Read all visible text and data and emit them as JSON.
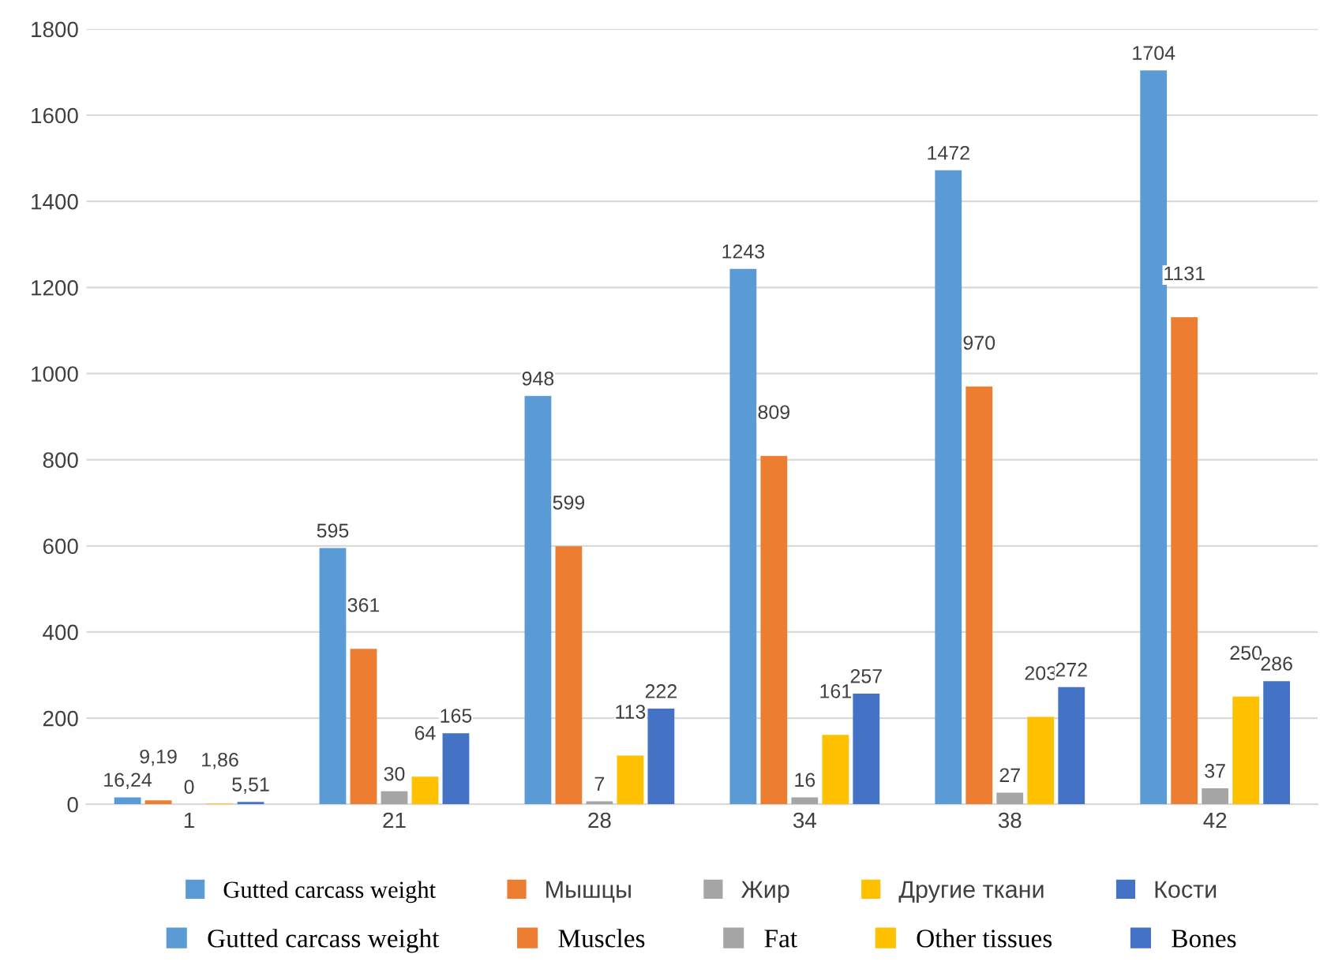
{
  "chart_data": {
    "type": "bar",
    "categories": [
      "1",
      "21",
      "28",
      "34",
      "38",
      "42"
    ],
    "series": [
      {
        "name": "Gutted carcass weight",
        "color": "#5b9bd5",
        "values": [
          16.24,
          595,
          948,
          1243,
          1472,
          1704
        ],
        "value_labels": [
          "16,24",
          "595",
          "948",
          "1243",
          "1472",
          "1704"
        ]
      },
      {
        "name": "Мышцы",
        "color": "#ed7d31",
        "values": [
          9.19,
          361,
          599,
          809,
          970,
          1131
        ],
        "value_labels": [
          "9,19",
          "361",
          "599",
          "809",
          "970",
          "1131"
        ]
      },
      {
        "name": "Жир",
        "color": "#a5a5a5",
        "values": [
          0,
          30,
          7,
          16,
          27,
          37
        ],
        "value_labels": [
          "0",
          "30",
          "7",
          "16",
          "27",
          "37"
        ]
      },
      {
        "name": "Другие ткани",
        "color": "#ffc000",
        "values": [
          1.86,
          64,
          113,
          161,
          203,
          250
        ],
        "value_labels": [
          "1,86",
          "64",
          "113",
          "161",
          "203",
          "250"
        ]
      },
      {
        "name": "Кости",
        "color": "#4472c4",
        "values": [
          5.51,
          165,
          222,
          257,
          272,
          286
        ],
        "value_labels": [
          "5,51",
          "165",
          "222",
          "257",
          "272",
          "286"
        ]
      }
    ],
    "annotations": [
      "Gutted carcass weight",
      "Muscles",
      "Fat",
      "Other tissues",
      "Bones"
    ],
    "ylim": [
      0,
      1800
    ],
    "yticks": [
      0,
      200,
      400,
      600,
      800,
      1000,
      1200,
      1400,
      1600,
      1800
    ],
    "grid": "y",
    "legend": "bottom"
  }
}
